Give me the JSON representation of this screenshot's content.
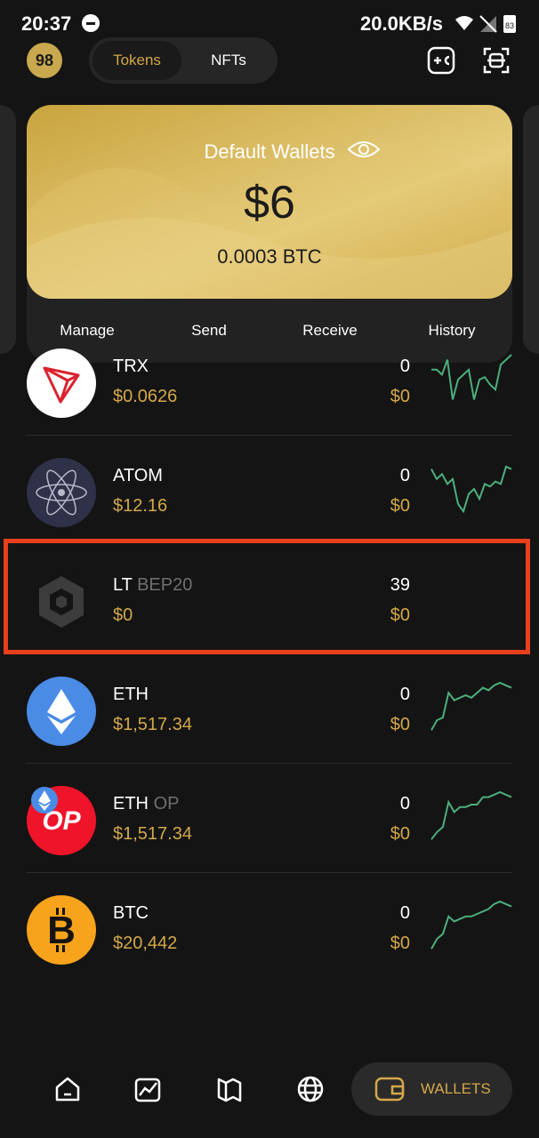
{
  "status_bar": {
    "time": "20:37",
    "net_speed": "20.0KB/s",
    "battery": "83"
  },
  "header": {
    "logo_text": "98",
    "tabs": [
      {
        "label": "Tokens",
        "active": true
      },
      {
        "label": "NFTs",
        "active": false
      }
    ],
    "icons": [
      "add-token-icon",
      "scan-icon"
    ]
  },
  "wallet_card": {
    "title": "Default Wallets",
    "balance": "$6",
    "btc_balance": "0.0003 BTC",
    "actions": [
      "Manage",
      "Send",
      "Receive",
      "History"
    ]
  },
  "tokens": [
    {
      "name": "TRX",
      "network": "",
      "price": "$0.0626",
      "amount": "0",
      "value": "$0",
      "icon": "trx-icon",
      "spark": [
        0.3,
        0.3,
        0.4,
        0.1,
        0.9,
        0.5,
        0.4,
        0.3,
        0.9,
        0.5,
        0.45,
        0.6,
        0.7,
        0.2,
        0.1,
        0.0
      ]
    },
    {
      "name": "ATOM",
      "network": "",
      "price": "$12.16",
      "amount": "0",
      "value": "$0",
      "icon": "atom-icon",
      "spark": [
        0.1,
        0.3,
        0.2,
        0.4,
        0.3,
        0.8,
        0.95,
        0.6,
        0.5,
        0.7,
        0.4,
        0.45,
        0.35,
        0.4,
        0.05,
        0.1
      ]
    },
    {
      "name": "LT",
      "network": "BEP20",
      "price": "$0",
      "amount": "39",
      "value": "$0",
      "icon": "bnb-icon",
      "spark": []
    },
    {
      "name": "ETH",
      "network": "",
      "price": "$1,517.34",
      "amount": "0",
      "value": "$0",
      "icon": "eth-icon",
      "spark": [
        0.95,
        0.75,
        0.7,
        0.2,
        0.35,
        0.3,
        0.25,
        0.3,
        0.2,
        0.1,
        0.15,
        0.05,
        0.0,
        0.05,
        0.1
      ]
    },
    {
      "name": "ETH",
      "network": "OP",
      "price": "$1,517.34",
      "amount": "0",
      "value": "$0",
      "icon": "op-icon",
      "spark": [
        0.95,
        0.8,
        0.7,
        0.2,
        0.4,
        0.3,
        0.3,
        0.25,
        0.25,
        0.1,
        0.1,
        0.05,
        0.0,
        0.05,
        0.1
      ]
    },
    {
      "name": "BTC",
      "network": "",
      "price": "$20,442",
      "amount": "0",
      "value": "$0",
      "icon": "btc-icon",
      "spark": [
        0.95,
        0.75,
        0.65,
        0.3,
        0.4,
        0.35,
        0.3,
        0.3,
        0.25,
        0.2,
        0.15,
        0.05,
        0.0,
        0.05,
        0.1
      ]
    }
  ],
  "bottom_nav": {
    "items": [
      "home-icon",
      "markets-icon",
      "discover-icon",
      "browser-icon"
    ],
    "active_label": "WALLETS"
  },
  "colors": {
    "background": "#141414",
    "accent_gold": "#d4a849",
    "sparkline": "#4caf7d",
    "highlight": "#e8401c"
  }
}
